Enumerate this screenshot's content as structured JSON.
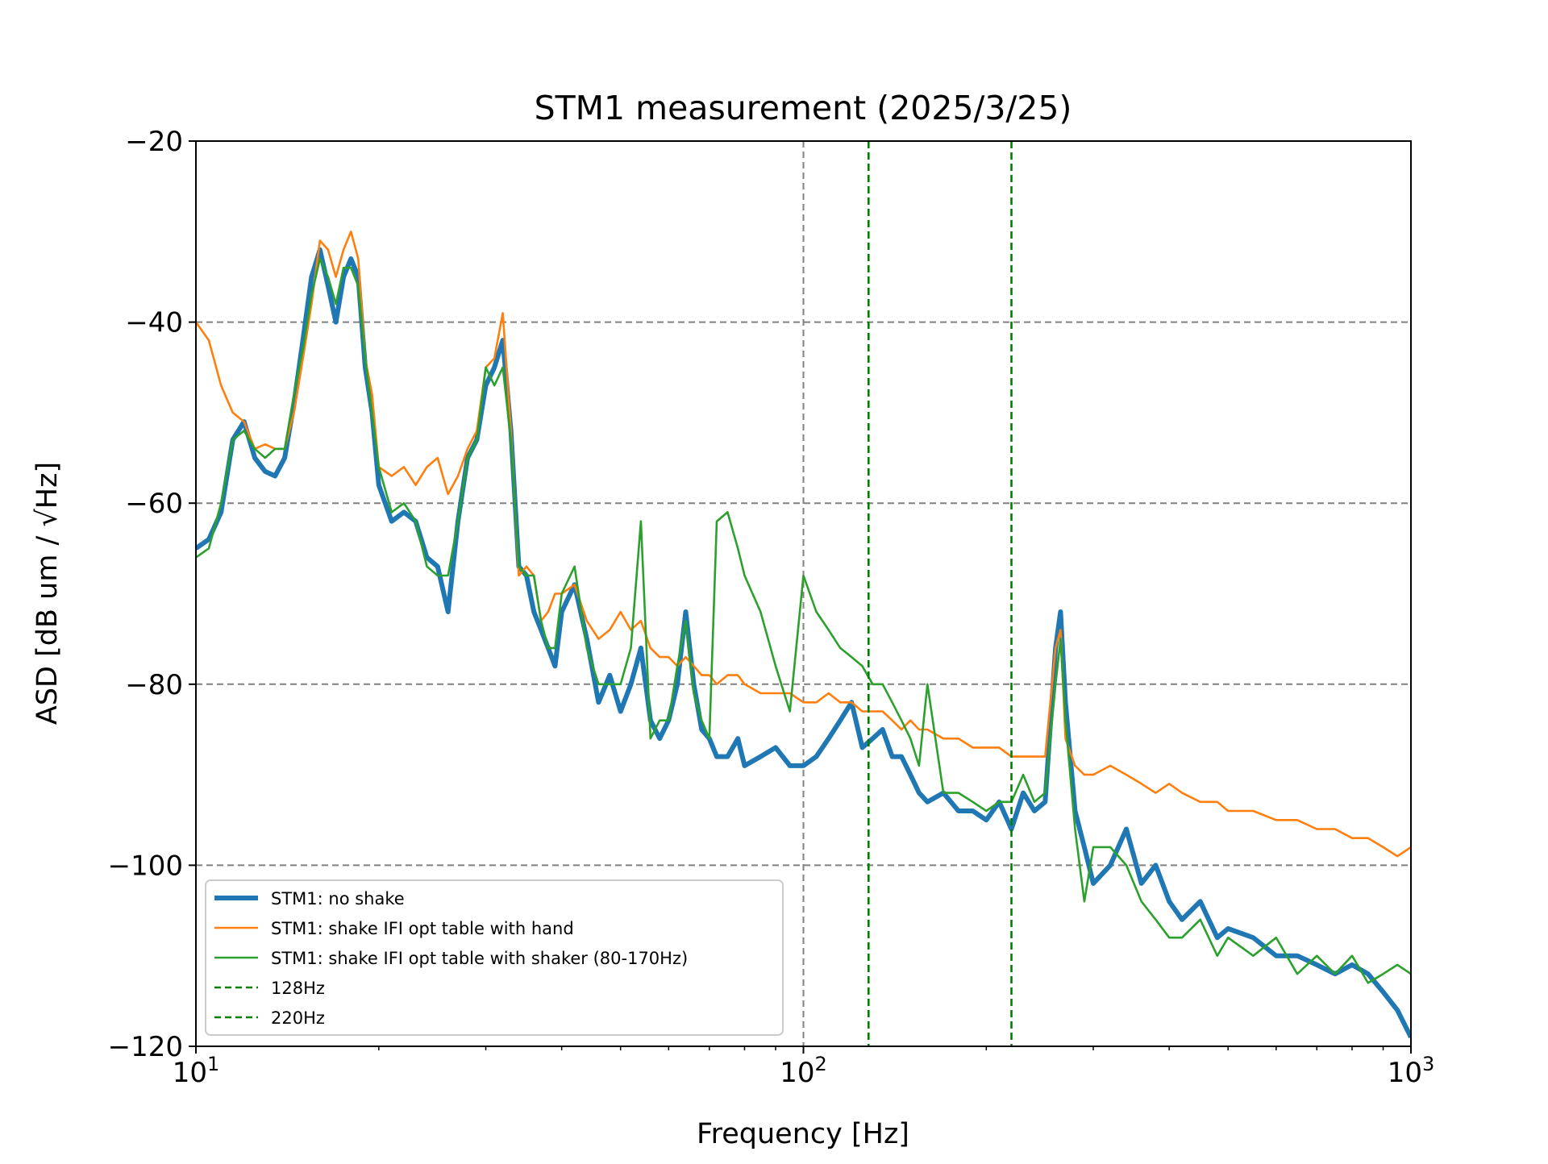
{
  "chart_data": {
    "type": "line",
    "title": "STM1 measurement (2025/3/25)",
    "xlabel": "Frequency [Hz]",
    "ylabel": "ASD [dB um / √Hz]",
    "xscale": "log",
    "xlim": [
      10,
      1000
    ],
    "ylim": [
      -120,
      -20
    ],
    "x_ticks": [
      {
        "value": 10,
        "base": "10",
        "exp": "1"
      },
      {
        "value": 100,
        "base": "10",
        "exp": "2"
      },
      {
        "value": 1000,
        "base": "10",
        "exp": "3"
      }
    ],
    "y_ticks": [
      {
        "value": -120,
        "label": "−120"
      },
      {
        "value": -100,
        "label": "−100"
      },
      {
        "value": -80,
        "label": "−80"
      },
      {
        "value": -60,
        "label": "−60"
      },
      {
        "value": -40,
        "label": "−40"
      },
      {
        "value": -20,
        "label": "−20"
      }
    ],
    "grid": true,
    "legend_position": "lower-left",
    "vlines": [
      {
        "name": "128Hz",
        "x": 128,
        "color": "#008000"
      },
      {
        "name": "220Hz",
        "x": 220,
        "color": "#008000"
      }
    ],
    "series": [
      {
        "name": "STM1: no shake",
        "color": "#1f77b4",
        "width": "thick",
        "x": [
          10,
          10.5,
          11,
          11.5,
          12,
          12.5,
          13,
          13.5,
          14,
          14.5,
          15,
          15.5,
          16,
          16.5,
          17,
          17.5,
          18,
          18.5,
          19,
          19.5,
          20,
          21,
          22,
          23,
          24,
          25,
          26,
          27,
          28,
          29,
          30,
          31,
          32,
          33,
          34,
          35,
          36,
          37,
          38,
          39,
          40,
          42,
          44,
          46,
          48,
          50,
          52,
          54,
          56,
          58,
          60,
          62,
          64,
          66,
          68,
          70,
          72,
          75,
          78,
          80,
          85,
          90,
          95,
          100,
          105,
          110,
          115,
          120,
          125,
          130,
          135,
          140,
          145,
          150,
          155,
          160,
          170,
          180,
          190,
          200,
          210,
          220,
          230,
          240,
          250,
          260,
          265,
          270,
          280,
          290,
          300,
          320,
          340,
          360,
          380,
          400,
          420,
          450,
          480,
          500,
          550,
          600,
          650,
          700,
          750,
          800,
          850,
          900,
          950,
          1000
        ],
        "y": [
          -65,
          -64,
          -61,
          -53,
          -51,
          -55,
          -56.5,
          -57,
          -55,
          -49,
          -42,
          -35,
          -32,
          -36,
          -40,
          -35,
          -33,
          -35,
          -45,
          -50,
          -58,
          -62,
          -61,
          -62,
          -66,
          -67,
          -72,
          -62,
          -55,
          -53,
          -47,
          -45,
          -42,
          -52,
          -67,
          -68,
          -72,
          -74,
          -76,
          -78,
          -72,
          -69,
          -75,
          -82,
          -79,
          -83,
          -80,
          -76,
          -84,
          -86,
          -84,
          -80,
          -72,
          -80,
          -85,
          -86,
          -88,
          -88,
          -86,
          -89,
          -88,
          -87,
          -89,
          -89,
          -88,
          -86,
          -84,
          -82,
          -87,
          -86,
          -85,
          -88,
          -88,
          -90,
          -92,
          -93,
          -92,
          -94,
          -94,
          -95,
          -93,
          -96,
          -92,
          -94,
          -93,
          -76,
          -72,
          -82,
          -94,
          -98,
          -102,
          -100,
          -96,
          -102,
          -100,
          -104,
          -106,
          -104,
          -108,
          -107,
          -108,
          -110,
          -110,
          -111,
          -112,
          -111,
          -112,
          -114,
          -116,
          -119
        ]
      },
      {
        "name": "STM1: shake IFI opt table with hand",
        "color": "#ff7f0e",
        "width": "thin",
        "x": [
          10,
          10.5,
          11,
          11.5,
          12,
          12.5,
          13,
          13.5,
          14,
          14.5,
          15,
          15.5,
          16,
          16.5,
          17,
          17.5,
          18,
          18.5,
          19,
          19.5,
          20,
          21,
          22,
          23,
          24,
          25,
          26,
          27,
          28,
          29,
          30,
          31,
          32,
          33,
          34,
          35,
          36,
          37,
          38,
          39,
          40,
          42,
          44,
          46,
          48,
          50,
          52,
          54,
          56,
          58,
          60,
          62,
          64,
          66,
          68,
          70,
          72,
          75,
          78,
          80,
          85,
          90,
          95,
          100,
          105,
          110,
          115,
          120,
          125,
          130,
          135,
          140,
          145,
          150,
          155,
          160,
          170,
          180,
          190,
          200,
          210,
          220,
          230,
          240,
          250,
          260,
          265,
          270,
          280,
          290,
          300,
          320,
          340,
          360,
          380,
          400,
          420,
          450,
          480,
          500,
          550,
          600,
          650,
          700,
          750,
          800,
          850,
          900,
          950,
          1000
        ],
        "y": [
          -40,
          -42,
          -47,
          -50,
          -51,
          -54,
          -53.5,
          -54,
          -54,
          -50,
          -44,
          -38,
          -31,
          -32,
          -35,
          -32,
          -30,
          -33,
          -44,
          -48,
          -56,
          -57,
          -56,
          -58,
          -56,
          -55,
          -59,
          -57,
          -54,
          -52,
          -45,
          -44,
          -39,
          -52,
          -68,
          -67,
          -68,
          -73,
          -72,
          -70,
          -70,
          -69,
          -73,
          -75,
          -74,
          -72,
          -74,
          -73,
          -76,
          -77,
          -77,
          -78,
          -77,
          -78,
          -79,
          -79,
          -80,
          -79,
          -79,
          -80,
          -81,
          -81,
          -81,
          -82,
          -82,
          -81,
          -82,
          -82,
          -83,
          -83,
          -83,
          -84,
          -85,
          -84,
          -85,
          -85,
          -86,
          -86,
          -87,
          -87,
          -87,
          -88,
          -88,
          -88,
          -88,
          -76,
          -74,
          -86,
          -89,
          -90,
          -90,
          -89,
          -90,
          -91,
          -92,
          -91,
          -92,
          -93,
          -93,
          -94,
          -94,
          -95,
          -95,
          -96,
          -96,
          -97,
          -97,
          -98,
          -99,
          -98
        ]
      },
      {
        "name": "STM1: shake IFI opt table with shaker (80-170Hz)",
        "color": "#2ca02c",
        "width": "thin",
        "x": [
          10,
          10.5,
          11,
          11.5,
          12,
          12.5,
          13,
          13.5,
          14,
          14.5,
          15,
          15.5,
          16,
          16.5,
          17,
          17.5,
          18,
          18.5,
          19,
          19.5,
          20,
          21,
          22,
          23,
          24,
          25,
          26,
          27,
          28,
          29,
          30,
          31,
          32,
          33,
          34,
          35,
          36,
          37,
          38,
          39,
          40,
          42,
          44,
          46,
          48,
          50,
          52,
          54,
          56,
          58,
          60,
          62,
          64,
          66,
          68,
          70,
          72,
          75,
          78,
          80,
          85,
          90,
          95,
          100,
          105,
          110,
          115,
          120,
          125,
          130,
          135,
          140,
          145,
          150,
          155,
          160,
          170,
          180,
          190,
          200,
          210,
          220,
          230,
          240,
          250,
          260,
          265,
          270,
          280,
          290,
          300,
          320,
          340,
          360,
          380,
          400,
          420,
          450,
          480,
          500,
          550,
          600,
          650,
          700,
          750,
          800,
          850,
          900,
          950,
          1000
        ],
        "y": [
          -66,
          -65,
          -60,
          -53,
          -52,
          -54,
          -55,
          -54,
          -54,
          -48,
          -43,
          -37,
          -33,
          -35,
          -38,
          -34,
          -34,
          -36,
          -44,
          -50,
          -56,
          -61,
          -60,
          -62,
          -67,
          -68,
          -68,
          -62,
          -55,
          -53,
          -45,
          -47,
          -45,
          -53,
          -67,
          -68,
          -68,
          -73,
          -76,
          -76,
          -70,
          -67,
          -76,
          -80,
          -80,
          -80,
          -76,
          -62,
          -86,
          -84,
          -84,
          -78,
          -73,
          -81,
          -84,
          -86,
          -62,
          -61,
          -65,
          -68,
          -72,
          -78,
          -83,
          -68,
          -72,
          -74,
          -76,
          -77,
          -78,
          -80,
          -80,
          -82,
          -84,
          -86,
          -89,
          -80,
          -92,
          -92,
          -93,
          -94,
          -93,
          -93,
          -90,
          -93,
          -92,
          -80,
          -75,
          -84,
          -96,
          -104,
          -98,
          -98,
          -100,
          -104,
          -106,
          -108,
          -108,
          -106,
          -110,
          -108,
          -110,
          -108,
          -112,
          -110,
          -112,
          -110,
          -113,
          -112,
          -111,
          -112
        ]
      }
    ]
  }
}
